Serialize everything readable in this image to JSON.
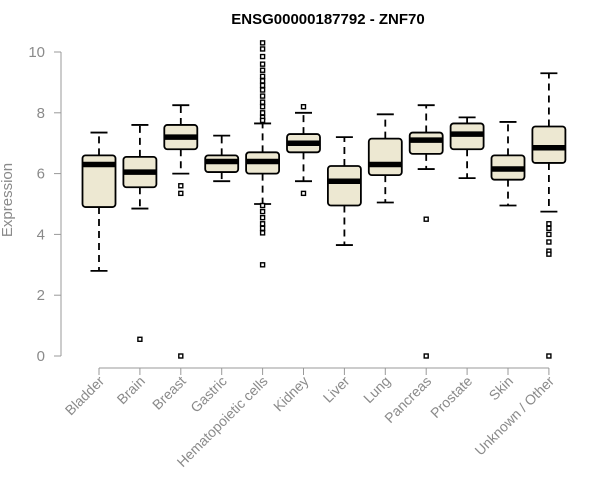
{
  "chart_data": {
    "type": "boxplot",
    "title": "ENSG00000187792 - ZNF70",
    "xlabel": "",
    "ylabel": "Expression",
    "ylim": [
      0,
      10.4
    ],
    "yticks": [
      0,
      2,
      4,
      6,
      8,
      10
    ],
    "grid": false,
    "box_fill": "#ede8d2",
    "categories": [
      "Bladder",
      "Brain",
      "Breast",
      "Gastric",
      "Hematopoietic cells",
      "Kidney",
      "Liver",
      "Lung",
      "Pancreas",
      "Prostate",
      "Skin",
      "Unknown / Other"
    ],
    "boxes": [
      {
        "whislo": 2.8,
        "q1": 4.9,
        "med": 6.3,
        "q3": 6.6,
        "whishi": 7.35,
        "outliers": []
      },
      {
        "whislo": 4.85,
        "q1": 5.55,
        "med": 6.05,
        "q3": 6.55,
        "whishi": 7.6,
        "outliers": [
          0.55
        ]
      },
      {
        "whislo": 6.0,
        "q1": 6.8,
        "med": 7.2,
        "q3": 7.6,
        "whishi": 8.25,
        "outliers": [
          5.6,
          5.35,
          0.0
        ]
      },
      {
        "whislo": 5.75,
        "q1": 6.05,
        "med": 6.4,
        "q3": 6.6,
        "whishi": 7.25,
        "outliers": []
      },
      {
        "whislo": 5.0,
        "q1": 6.0,
        "med": 6.4,
        "q3": 6.7,
        "whishi": 7.65,
        "outliers": [
          10.3,
          10.1,
          9.85,
          9.6,
          9.4,
          9.2,
          9.05,
          8.9,
          8.75,
          8.55,
          8.35,
          8.2,
          8.0,
          7.85,
          7.75,
          4.95,
          4.75,
          4.55,
          4.35,
          4.2,
          4.05,
          3.0
        ]
      },
      {
        "whislo": 5.75,
        "q1": 6.7,
        "med": 7.0,
        "q3": 7.3,
        "whishi": 8.0,
        "outliers": [
          8.2,
          5.35
        ]
      },
      {
        "whislo": 3.65,
        "q1": 4.95,
        "med": 5.75,
        "q3": 6.25,
        "whishi": 7.2,
        "outliers": []
      },
      {
        "whislo": 5.05,
        "q1": 5.95,
        "med": 6.3,
        "q3": 7.15,
        "whishi": 7.95,
        "outliers": []
      },
      {
        "whislo": 6.15,
        "q1": 6.65,
        "med": 7.1,
        "q3": 7.35,
        "whishi": 8.25,
        "outliers": [
          4.5,
          0.0
        ]
      },
      {
        "whislo": 5.85,
        "q1": 6.8,
        "med": 7.3,
        "q3": 7.65,
        "whishi": 7.85,
        "outliers": []
      },
      {
        "whislo": 4.95,
        "q1": 5.8,
        "med": 6.15,
        "q3": 6.6,
        "whishi": 7.7,
        "outliers": []
      },
      {
        "whislo": 4.75,
        "q1": 6.35,
        "med": 6.85,
        "q3": 7.55,
        "whishi": 9.3,
        "outliers": [
          4.35,
          4.2,
          4.0,
          3.75,
          3.45,
          3.35,
          0.0
        ]
      }
    ]
  }
}
